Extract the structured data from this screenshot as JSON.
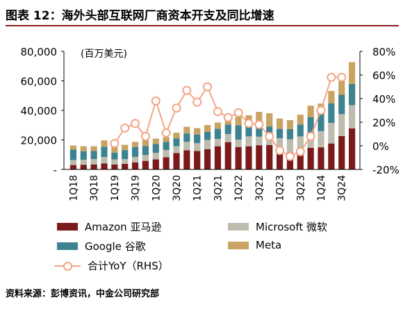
{
  "title": "图表 12：海外头部互联网厂商资本开支及同比增速",
  "source": "资料来源：彭博资讯，中金公司研究部",
  "chart_data": {
    "type": "bar",
    "stacked": true,
    "unit_label": "(百万美元)",
    "categories": [
      "1Q18",
      "2Q18",
      "3Q18",
      "4Q18",
      "1Q19",
      "2Q19",
      "3Q19",
      "4Q19",
      "1Q20",
      "2Q20",
      "3Q20",
      "4Q20",
      "1Q21",
      "2Q21",
      "3Q21",
      "4Q21",
      "1Q22",
      "2Q22",
      "3Q22",
      "4Q22",
      "1Q23",
      "2Q23",
      "3Q23",
      "4Q23",
      "1Q24",
      "2Q24",
      "3Q24",
      "4Q24"
    ],
    "tick_labels": [
      "1Q18",
      "3Q18",
      "1Q19",
      "3Q19",
      "1Q20",
      "3Q20",
      "1Q21",
      "3Q21",
      "1Q22",
      "3Q22",
      "1Q23",
      "3Q23",
      "1Q24",
      "3Q24"
    ],
    "ylim": [
      0,
      80000
    ],
    "yticks": [
      "-",
      "20,000",
      "40,000",
      "60,000",
      "80,000"
    ],
    "y2lim": [
      -20,
      80
    ],
    "y2ticks": [
      "-20%",
      "0%",
      "20%",
      "40%",
      "60%",
      "80%"
    ],
    "grid": false,
    "series": [
      {
        "name": "Amazon 亚马逊",
        "color": "#7b1a1a",
        "values": [
          3000,
          3200,
          3400,
          4000,
          3300,
          3800,
          4700,
          5800,
          6800,
          8300,
          11100,
          13000,
          12500,
          13700,
          15700,
          18500,
          15200,
          15700,
          16400,
          16600,
          14200,
          11500,
          12500,
          14600,
          15000,
          17600,
          22600,
          27800
        ]
      },
      {
        "name": "Microsoft 微软",
        "color": "#bdbcad",
        "values": [
          3400,
          3300,
          3600,
          4400,
          3500,
          3200,
          3800,
          4000,
          4500,
          4900,
          4600,
          5800,
          5300,
          6300,
          5000,
          5500,
          5000,
          6700,
          5800,
          6200,
          7000,
          8900,
          9900,
          9700,
          10950,
          13900,
          14900,
          15800
        ]
      },
      {
        "name": "Google 谷歌",
        "color": "#3d8291",
        "values": [
          7000,
          5800,
          5500,
          7000,
          4600,
          6100,
          6700,
          6000,
          6000,
          5400,
          5400,
          5500,
          5900,
          5500,
          6800,
          6400,
          9800,
          6800,
          7300,
          6300,
          6300,
          6900,
          8100,
          11000,
          12000,
          13200,
          13100,
          14300
        ]
      },
      {
        "name": "Meta",
        "color": "#c9a363",
        "values": [
          2800,
          3400,
          3200,
          4300,
          3800,
          3600,
          3500,
          4100,
          3600,
          3300,
          3800,
          4600,
          4300,
          4600,
          4300,
          5500,
          5600,
          7500,
          9500,
          9000,
          7000,
          6100,
          6600,
          7900,
          6700,
          8500,
          9200,
          14800
        ]
      }
    ],
    "line": {
      "name": "合计YoY（RHS）",
      "color": "#f2a584",
      "values": [
        null,
        null,
        null,
        null,
        2,
        15,
        19,
        8,
        38,
        11,
        32,
        47,
        37,
        50,
        29,
        24,
        28,
        19,
        18,
        8,
        -4,
        -9,
        -5,
        8,
        30,
        58,
        58,
        null
      ]
    },
    "legend": [
      "Amazon 亚马逊",
      "Microsoft 微软",
      "Google 谷歌",
      "Meta",
      "合计YoY（RHS）"
    ]
  }
}
